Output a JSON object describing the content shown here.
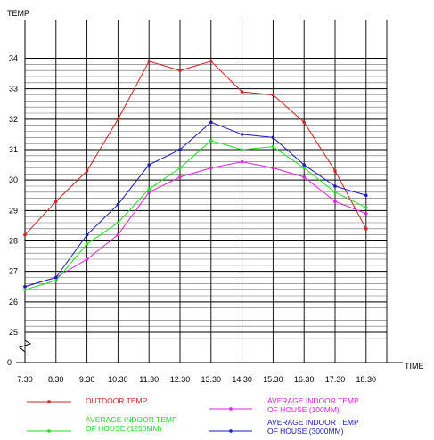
{
  "chart_data": {
    "type": "line",
    "title": "",
    "xlabel": "TIME",
    "ylabel": "TEMP",
    "categories": [
      "7.30",
      "8.30",
      "9.30",
      "10.30",
      "11.30",
      "12.30",
      "13.30",
      "14.30",
      "15.30",
      "16.30",
      "17.30",
      "18.30"
    ],
    "y_ticks": [
      "25",
      "26",
      "27",
      "28",
      "29",
      "30",
      "31",
      "32",
      "33",
      "34"
    ],
    "y_zero_label": "0",
    "ylim": [
      25,
      35
    ],
    "axis_break": true,
    "grid": true,
    "legend_position": "bottom",
    "series": [
      {
        "name": "OUTDOOR TEMP",
        "color": "#d42020",
        "values": [
          28.2,
          29.3,
          30.3,
          32.0,
          33.9,
          33.6,
          33.9,
          32.9,
          32.8,
          31.9,
          30.3,
          28.4
        ]
      },
      {
        "name": "AVERAGE INDOOR TEMP OF HOUSE (100MM)",
        "color": "#e020e0",
        "values": [
          26.5,
          26.8,
          27.4,
          28.2,
          29.6,
          30.1,
          30.4,
          30.6,
          30.4,
          30.1,
          29.3,
          28.9
        ]
      },
      {
        "name": "AVERAGE INDOOR TEMP OF HOUSE (1250MM)",
        "color": "#20e020",
        "values": [
          26.4,
          26.7,
          27.9,
          28.6,
          29.7,
          30.4,
          31.3,
          31.0,
          31.1,
          30.4,
          29.6,
          29.1
        ]
      },
      {
        "name": "AVERAGE INDOOR TEMP OF HOUSE (3000MM)",
        "color": "#1a1ab8",
        "values": [
          26.5,
          26.8,
          28.2,
          29.2,
          30.5,
          31.0,
          31.9,
          31.5,
          31.4,
          30.5,
          29.8,
          29.5
        ]
      }
    ],
    "legend": [
      {
        "series": 0,
        "lines": [
          "OUTDOOR TEMP"
        ]
      },
      {
        "series": 2,
        "lines": [
          "AVERAGE INDOOR TEMP",
          "OF HOUSE (1250MM)"
        ]
      },
      {
        "series": 1,
        "lines": [
          "AVERAGE INDOOR TEMP",
          "OF HOUSE (100MM)"
        ]
      },
      {
        "series": 3,
        "lines": [
          "AVERAGE INDOOR TEMP",
          "OF HOUSE (3000MM)"
        ]
      }
    ]
  }
}
